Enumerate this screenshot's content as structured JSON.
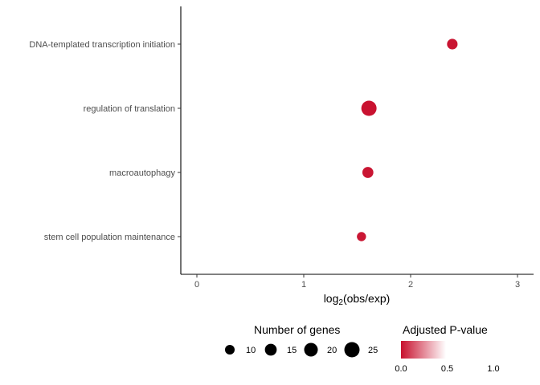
{
  "chart_data": {
    "type": "scatter",
    "xlabel_base": "log",
    "xlabel_sub": "2",
    "xlabel_rest": "(obs/exp)",
    "ylabel": "",
    "xlim": [
      -0.15,
      3.15
    ],
    "x_ticks": [
      0,
      1,
      2,
      3
    ],
    "categories": [
      "DNA-templated transcription initiation",
      "regulation of translation",
      "macroautophagy",
      "stem cell population maintenance"
    ],
    "points": [
      {
        "term": "DNA-templated transcription initiation",
        "x": 2.39,
        "genes": 12,
        "padj": 0.02
      },
      {
        "term": "regulation of translation",
        "x": 1.61,
        "genes": 25,
        "padj": 0.01
      },
      {
        "term": "macroautophagy",
        "x": 1.6,
        "genes": 13,
        "padj": 0.02
      },
      {
        "term": "stem cell population maintenance",
        "x": 1.54,
        "genes": 9,
        "padj": 0.03
      }
    ],
    "size_legend": {
      "title": "Number of genes",
      "values": [
        10,
        15,
        20,
        25
      ],
      "labels": [
        "10",
        "15",
        "20",
        "25"
      ]
    },
    "color_legend": {
      "title": "Adjusted P-value",
      "low_color": "#c8102e",
      "high_color": "#ffffff",
      "ticks": [
        0.0,
        0.5,
        1.0
      ],
      "tick_labels": [
        "0.0",
        "0.5",
        "1.0"
      ]
    },
    "grid": false,
    "legend_position": "bottom"
  }
}
